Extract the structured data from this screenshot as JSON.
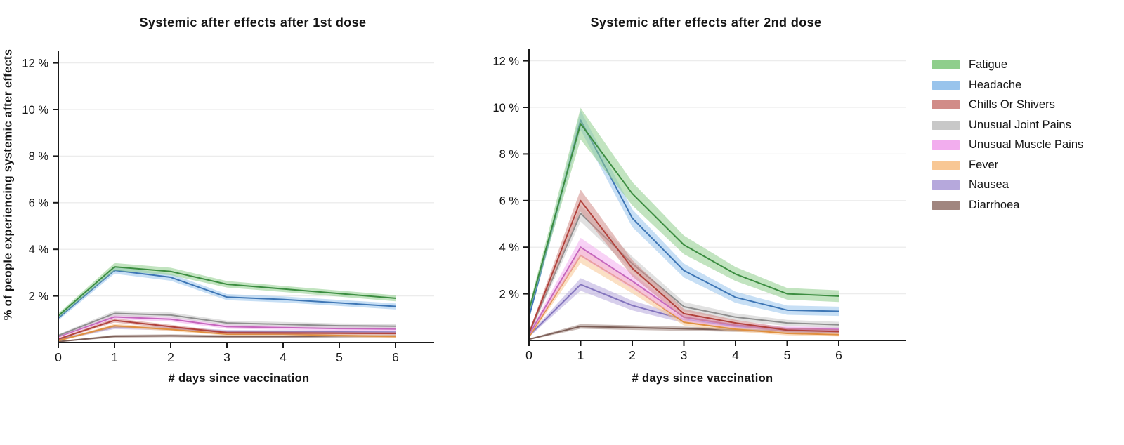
{
  "figure": {
    "background": "#ffffff",
    "axis_color": "#1a1a1a",
    "grid_color": "#ececec"
  },
  "series_colors": {
    "Fatigue": {
      "line": "#3c8d41",
      "band": "#8fce8c"
    },
    "Headache": {
      "line": "#3e76b5",
      "band": "#99c4ec"
    },
    "Chills Or Shivers": {
      "line": "#b1423c",
      "band": "#d18c88"
    },
    "Unusual Joint Pains": {
      "line": "#8e8e8e",
      "band": "#c8c8c8"
    },
    "Unusual Muscle Pains": {
      "line": "#c566bd",
      "band": "#f2adee"
    },
    "Fever": {
      "line": "#e08f3f",
      "band": "#f8c794"
    },
    "Nausea": {
      "line": "#8374bd",
      "band": "#b6a8dc"
    },
    "Diarrhoea": {
      "line": "#7d5f58",
      "band": "#a1867f"
    }
  },
  "legend": {
    "position": "right",
    "items": [
      "Fatigue",
      "Headache",
      "Chills Or Shivers",
      "Unusual Joint Pains",
      "Unusual Muscle Pains",
      "Fever",
      "Nausea",
      "Diarrhoea"
    ]
  },
  "chart_data": [
    {
      "type": "line",
      "title": "Systemic after effects after 1st dose",
      "xlabel": "# days since vaccination",
      "ylabel": "% of people experiencing systemic after effects",
      "x": [
        0,
        1,
        2,
        3,
        4,
        5,
        6
      ],
      "x_tick_labels": [
        "0",
        "1",
        "2",
        "3",
        "4",
        "5",
        "6"
      ],
      "yticks": [
        2,
        4,
        6,
        8,
        10,
        12
      ],
      "y_tick_suffix": " %",
      "ylim": [
        0,
        12.6
      ],
      "grid": true,
      "series": [
        {
          "name": "Fatigue",
          "values": [
            1.15,
            3.25,
            3.05,
            2.5,
            2.3,
            2.1,
            1.9
          ],
          "ci": [
            0.1,
            0.16,
            0.16,
            0.14,
            0.13,
            0.13,
            0.13
          ]
        },
        {
          "name": "Headache",
          "values": [
            1.05,
            3.1,
            2.8,
            1.95,
            1.85,
            1.7,
            1.55
          ],
          "ci": [
            0.1,
            0.15,
            0.15,
            0.13,
            0.13,
            0.13,
            0.13
          ]
        },
        {
          "name": "Chills Or Shivers",
          "values": [
            0.15,
            0.95,
            0.68,
            0.42,
            0.41,
            0.4,
            0.39
          ],
          "ci": [
            0.04,
            0.09,
            0.08,
            0.06,
            0.06,
            0.06,
            0.06
          ]
        },
        {
          "name": "Unusual Joint Pains",
          "values": [
            0.3,
            1.25,
            1.18,
            0.84,
            0.78,
            0.72,
            0.7
          ],
          "ci": [
            0.05,
            0.11,
            0.11,
            0.1,
            0.1,
            0.1,
            0.1
          ]
        },
        {
          "name": "Unusual Muscle Pains",
          "values": [
            0.25,
            1.1,
            1.0,
            0.68,
            0.64,
            0.6,
            0.58
          ],
          "ci": [
            0.05,
            0.1,
            0.1,
            0.09,
            0.09,
            0.09,
            0.09
          ]
        },
        {
          "name": "Fever",
          "values": [
            0.08,
            0.72,
            0.56,
            0.36,
            0.36,
            0.3,
            0.26
          ],
          "ci": [
            0.03,
            0.08,
            0.07,
            0.06,
            0.06,
            0.06,
            0.06
          ]
        },
        {
          "name": "Nausea",
          "values": [
            0.12,
            0.66,
            0.6,
            0.47,
            0.46,
            0.45,
            0.44
          ],
          "ci": [
            0.04,
            0.08,
            0.08,
            0.07,
            0.07,
            0.07,
            0.07
          ]
        },
        {
          "name": "Diarrhoea",
          "values": [
            0.04,
            0.27,
            0.29,
            0.26,
            0.26,
            0.27,
            0.28
          ],
          "ci": [
            0.02,
            0.06,
            0.06,
            0.06,
            0.06,
            0.06,
            0.06
          ]
        }
      ]
    },
    {
      "type": "line",
      "title": "Systemic after effects after 2nd dose",
      "xlabel": "# days since vaccination",
      "ylabel": "% of people experiencing systemic after effects",
      "x": [
        0,
        1,
        2,
        3,
        4,
        5,
        6
      ],
      "x_tick_labels": [
        "0",
        "1",
        "2",
        "3",
        "4",
        "5",
        "6"
      ],
      "yticks": [
        2,
        4,
        6,
        8,
        10,
        12
      ],
      "y_tick_suffix": " %",
      "ylim": [
        0,
        12.6
      ],
      "grid": true,
      "series": [
        {
          "name": "Fatigue",
          "values": [
            1.3,
            9.3,
            6.3,
            4.1,
            2.85,
            2.0,
            1.9
          ],
          "ci": [
            0.15,
            0.68,
            0.5,
            0.4,
            0.3,
            0.25,
            0.25
          ]
        },
        {
          "name": "Headache",
          "values": [
            1.0,
            9.45,
            5.25,
            3.0,
            1.85,
            1.3,
            1.25
          ],
          "ci": [
            0.12,
            0.42,
            0.38,
            0.3,
            0.24,
            0.2,
            0.2
          ]
        },
        {
          "name": "Chills Or Shivers",
          "values": [
            0.3,
            6.0,
            3.1,
            1.15,
            0.75,
            0.44,
            0.38
          ],
          "ci": [
            0.08,
            0.47,
            0.35,
            0.2,
            0.13,
            0.1,
            0.09
          ]
        },
        {
          "name": "Unusual Joint Pains",
          "values": [
            0.3,
            5.45,
            3.3,
            1.45,
            1.0,
            0.75,
            0.67
          ],
          "ci": [
            0.08,
            0.35,
            0.3,
            0.2,
            0.16,
            0.13,
            0.13
          ]
        },
        {
          "name": "Unusual Muscle Pains",
          "values": [
            0.25,
            4.0,
            2.55,
            1.0,
            0.65,
            0.5,
            0.47
          ],
          "ci": [
            0.08,
            0.4,
            0.33,
            0.18,
            0.12,
            0.1,
            0.1
          ]
        },
        {
          "name": "Fever",
          "values": [
            0.15,
            3.65,
            2.3,
            0.78,
            0.48,
            0.3,
            0.25
          ],
          "ci": [
            0.06,
            0.33,
            0.28,
            0.14,
            0.1,
            0.08,
            0.08
          ]
        },
        {
          "name": "Nausea",
          "values": [
            0.2,
            2.4,
            1.5,
            0.9,
            0.6,
            0.46,
            0.44
          ],
          "ci": [
            0.06,
            0.27,
            0.21,
            0.15,
            0.11,
            0.1,
            0.1
          ]
        },
        {
          "name": "Diarrhoea",
          "values": [
            0.05,
            0.6,
            0.55,
            0.5,
            0.45,
            0.42,
            0.4
          ],
          "ci": [
            0.03,
            0.1,
            0.1,
            0.09,
            0.08,
            0.08,
            0.08
          ]
        }
      ]
    }
  ]
}
